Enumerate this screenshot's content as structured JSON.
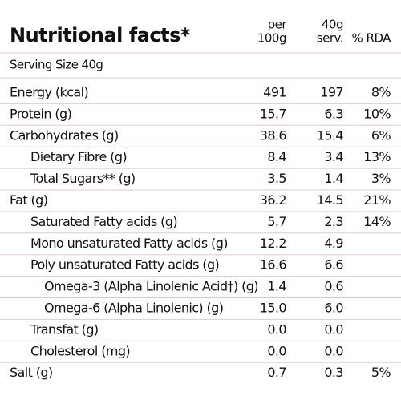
{
  "title": "Nutritional facts*",
  "columns": [
    [
      "per",
      "100g"
    ],
    [
      "40g",
      "serv."
    ],
    [
      "% RDA"
    ]
  ],
  "serving_size": "Serving Size 40g",
  "rows": [
    [
      "Energy (kcal)",
      "491",
      "197",
      "8%"
    ],
    [
      "Protein (g)",
      "15.7",
      "6.3",
      "10%"
    ],
    [
      "Carbohydrates (g)",
      "38.6",
      "15.4",
      "6%"
    ],
    [
      "Dietary Fibre (g)",
      "8.4",
      "3.4",
      "13%"
    ],
    [
      "Total Sugars** (g)",
      "3.5",
      "1.4",
      "3%"
    ],
    [
      "Fat (g)",
      "36.2",
      "14.5",
      "21%"
    ],
    [
      "Saturated Fatty acids (g)",
      "5.7",
      "2.3",
      "14%"
    ],
    [
      "Mono unsaturated Fatty acids (g)",
      "12.2",
      "4.9",
      null
    ],
    [
      "Poly unsaturated Fatty acids (g)",
      "16.6",
      "6.6",
      null
    ],
    [
      "Omega-3 (Alpha Linolenic Acid†) (g)",
      "1.4",
      "0.6",
      null
    ],
    [
      "Omega-6 (Alpha Linolenic) (g)",
      "15.0",
      "6.0",
      null
    ],
    [
      "Transfat (g)",
      "0.0",
      "0.0",
      null
    ],
    [
      "Cholesterol (mg)",
      "0.0",
      "0.0",
      null
    ],
    [
      "Salt (g)",
      "0.7",
      "0.3",
      "5%"
    ]
  ]
}
